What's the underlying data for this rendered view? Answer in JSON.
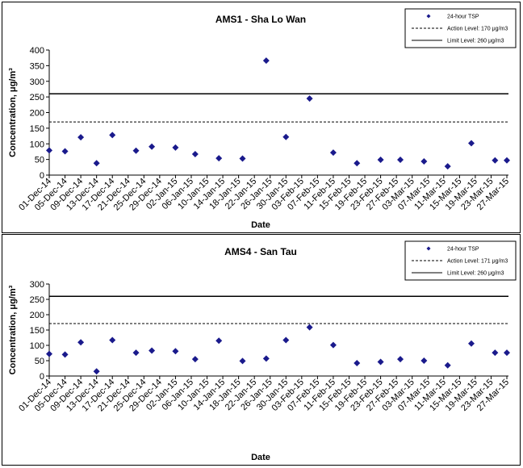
{
  "chart_data": [
    {
      "type": "scatter",
      "title": "AMS1 - Sha Lo Wan",
      "xlabel": "Date",
      "ylabel": "Concentration, μg/m³",
      "ylim": [
        0,
        400
      ],
      "yticks": [
        0,
        50,
        100,
        150,
        200,
        250,
        300,
        350,
        400
      ],
      "grid": false,
      "legend_position": "top-right",
      "x_tick_labels": [
        "01-Dec-14",
        "05-Dec-14",
        "09-Dec-14",
        "13-Dec-14",
        "17-Dec-14",
        "21-Dec-14",
        "25-Dec-14",
        "29-Dec-14",
        "02-Jan-15",
        "06-Jan-15",
        "10-Jan-15",
        "14-Jan-15",
        "18-Jan-15",
        "22-Jan-15",
        "26-Jan-15",
        "30-Jan-15",
        "03-Feb-15",
        "07-Feb-15",
        "11-Feb-15",
        "15-Feb-15",
        "19-Feb-15",
        "23-Feb-15",
        "27-Feb-15",
        "03-Mar-15",
        "07-Mar-15",
        "11-Mar-15",
        "15-Mar-15",
        "19-Mar-15",
        "23-Mar-15",
        "27-Mar-15"
      ],
      "series": [
        {
          "name": "24-hour TSP",
          "color": "#1a1a8c",
          "marker": "diamond",
          "x": [
            "01-Dec-14",
            "05-Dec-14",
            "09-Dec-14",
            "13-Dec-14",
            "17-Dec-14",
            "23-Dec-14",
            "27-Dec-14",
            "02-Jan-15",
            "07-Jan-15",
            "13-Jan-15",
            "19-Jan-15",
            "25-Jan-15",
            "30-Jan-15",
            "05-Feb-15",
            "11-Feb-15",
            "17-Feb-15",
            "23-Feb-15",
            "28-Feb-15",
            "06-Mar-15",
            "12-Mar-15",
            "18-Mar-15",
            "24-Mar-15",
            "27-Mar-15"
          ],
          "values": [
            79,
            76,
            121,
            38,
            128,
            78,
            91,
            88,
            67,
            54,
            53,
            366,
            122,
            245,
            72,
            38,
            49,
            49,
            44,
            28,
            102,
            47,
            47
          ]
        }
      ],
      "reference_lines": [
        {
          "label": "Action Level: 170 μg/m3",
          "value": 170,
          "style": "dashed"
        },
        {
          "label": "Limit Level: 260 μg/m3",
          "value": 260,
          "style": "solid"
        }
      ]
    },
    {
      "type": "scatter",
      "title": "AMS4 - San Tau",
      "xlabel": "Date",
      "ylabel": "Concentration, μg/m³",
      "ylim": [
        0,
        300
      ],
      "yticks": [
        0,
        50,
        100,
        150,
        200,
        250,
        300
      ],
      "grid": false,
      "legend_position": "top-right",
      "x_tick_labels": [
        "01-Dec-14",
        "05-Dec-14",
        "09-Dec-14",
        "13-Dec-14",
        "17-Dec-14",
        "21-Dec-14",
        "25-Dec-14",
        "29-Dec-14",
        "02-Jan-15",
        "06-Jan-15",
        "10-Jan-15",
        "14-Jan-15",
        "18-Jan-15",
        "22-Jan-15",
        "26-Jan-15",
        "30-Jan-15",
        "03-Feb-15",
        "07-Feb-15",
        "11-Feb-15",
        "15-Feb-15",
        "19-Feb-15",
        "23-Feb-15",
        "27-Feb-15",
        "03-Mar-15",
        "07-Mar-15",
        "11-Mar-15",
        "15-Mar-15",
        "19-Mar-15",
        "23-Mar-15",
        "27-Mar-15"
      ],
      "series": [
        {
          "name": "24-hour TSP",
          "color": "#1a1a8c",
          "marker": "diamond",
          "x": [
            "01-Dec-14",
            "05-Dec-14",
            "09-Dec-14",
            "13-Dec-14",
            "17-Dec-14",
            "23-Dec-14",
            "27-Dec-14",
            "02-Jan-15",
            "07-Jan-15",
            "13-Jan-15",
            "19-Jan-15",
            "25-Jan-15",
            "30-Jan-15",
            "05-Feb-15",
            "11-Feb-15",
            "17-Feb-15",
            "23-Feb-15",
            "28-Feb-15",
            "06-Mar-15",
            "12-Mar-15",
            "18-Mar-15",
            "24-Mar-15",
            "27-Mar-15"
          ],
          "values": [
            72,
            70,
            110,
            15,
            117,
            76,
            83,
            81,
            55,
            115,
            49,
            57,
            117,
            159,
            101,
            42,
            46,
            55,
            50,
            35,
            106,
            76,
            76
          ]
        }
      ],
      "reference_lines": [
        {
          "label": "Action Level: 171 μg/m3",
          "value": 171,
          "style": "dashed"
        },
        {
          "label": "Limit Level: 260 μg/m3",
          "value": 260,
          "style": "solid"
        }
      ]
    }
  ]
}
